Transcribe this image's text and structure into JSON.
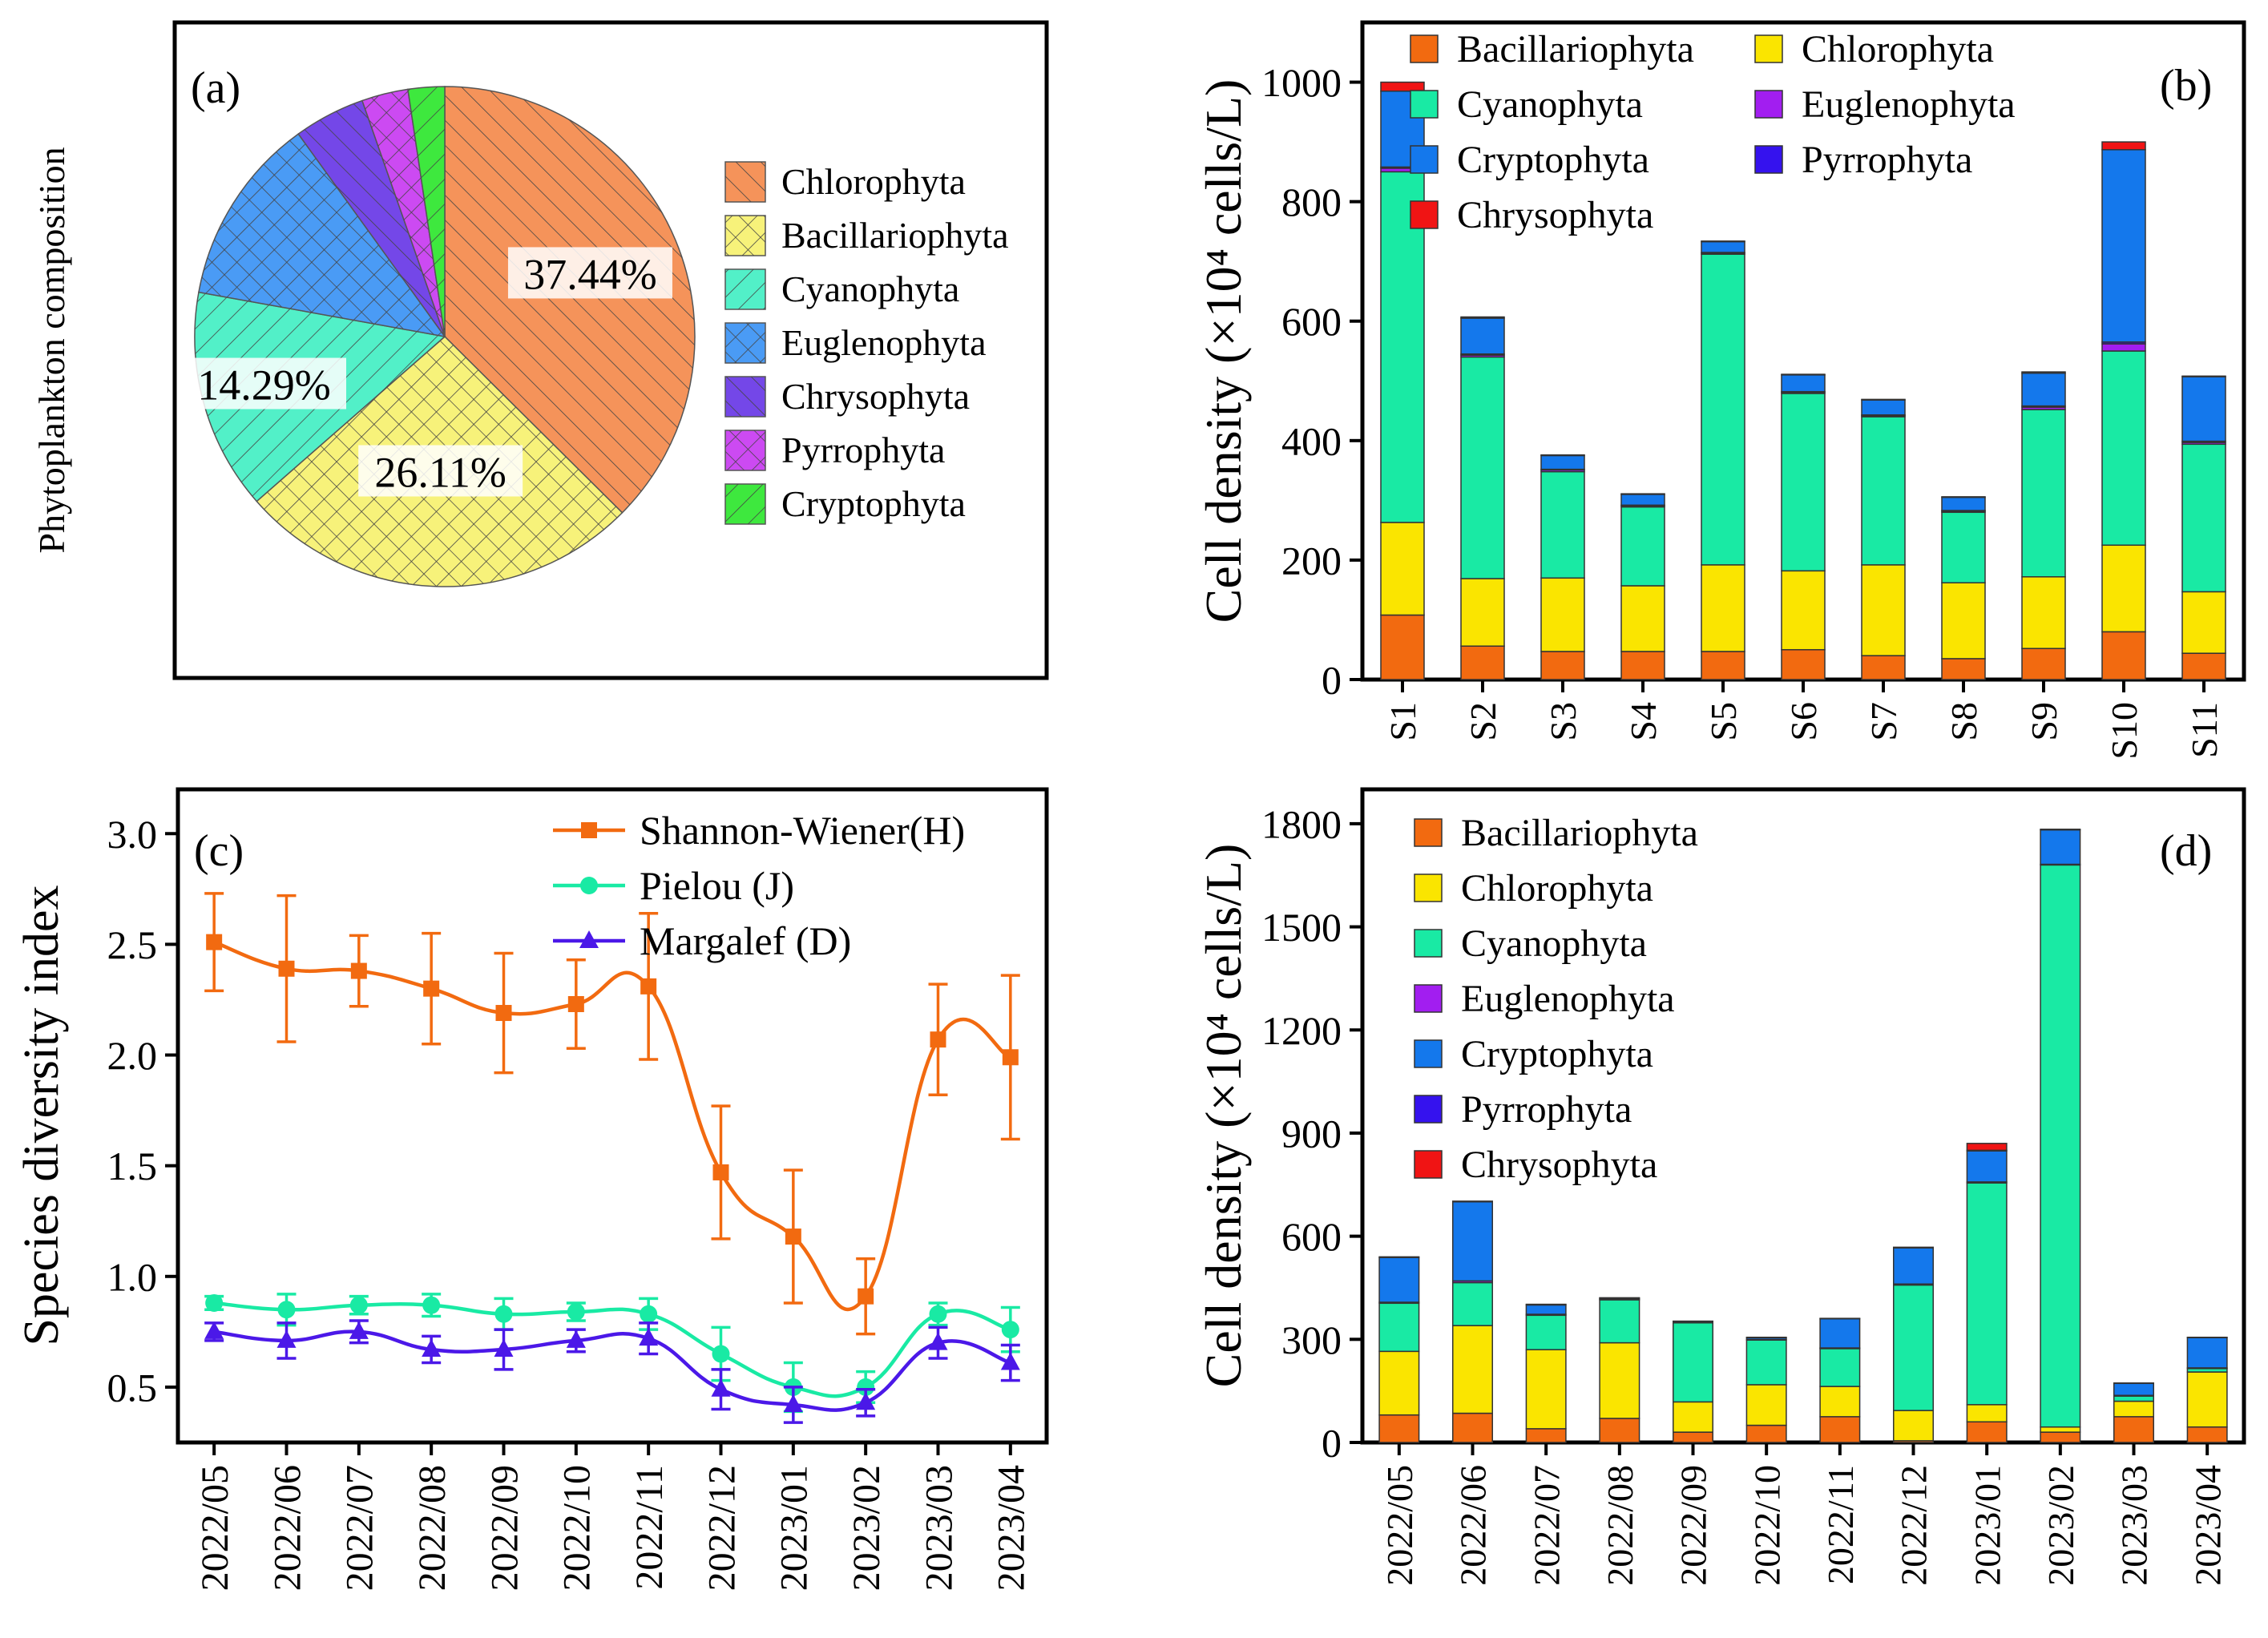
{
  "colors": {
    "Bacillariophyta": "#F26A10",
    "Chlorophyta": "#FAE500",
    "Cyanophyta": "#19EAA4",
    "Cryptophyta": "#1478EC",
    "Euglenophyta": "#A21EF0",
    "Pyrrophyta": "#3512EE",
    "Chrysophyta": "#F01414"
  },
  "chart_data": [
    {
      "panel": "(a)",
      "type": "pie",
      "ylabel": "Phytoplankton  composition",
      "slices": [
        {
          "name": "Chlorophyta",
          "value": 37.44,
          "label": "37.44%",
          "color": "#F5935A",
          "hatch": "diag"
        },
        {
          "name": "Bacillariophyta",
          "value": 26.11,
          "label": "26.11%",
          "color": "#F7F27A",
          "hatch": "cross"
        },
        {
          "name": "Cyanophyta",
          "value": 14.29,
          "label": "14.29%",
          "color": "#52F0C8",
          "hatch": "diag-rev"
        },
        {
          "name": "Euglenophyta",
          "value": 12.2,
          "label": "",
          "color": "#4A9BF5",
          "hatch": "cross"
        },
        {
          "name": "Chrysophyta",
          "value": 4.6,
          "label": "",
          "color": "#7447E8",
          "hatch": "diag"
        },
        {
          "name": "Pyrrophyta",
          "value": 3.0,
          "label": "",
          "color": "#CC4AF2",
          "hatch": "cross"
        },
        {
          "name": "Cryptophyta",
          "value": 2.36,
          "label": "",
          "color": "#3EE83E",
          "hatch": "diag-rev"
        }
      ],
      "legend": [
        "Chlorophyta",
        "Bacillariophyta",
        "Cyanophyta",
        "Euglenophyta",
        "Chrysophyta",
        "Pyrrophyta",
        "Cryptophyta"
      ]
    },
    {
      "panel": "(b)",
      "type": "bar",
      "stacked": true,
      "ylabel": "Cell density (×10⁴ cells/L)",
      "ylim": [
        0,
        1100
      ],
      "yticks": [
        0,
        200,
        400,
        600,
        800,
        1000
      ],
      "categories": [
        "S1",
        "S2",
        "S3",
        "S4",
        "S5",
        "S6",
        "S7",
        "S8",
        "S9",
        "S10",
        "S11"
      ],
      "series": [
        {
          "name": "Bacillariophyta",
          "values": [
            108,
            56,
            47,
            47,
            47,
            50,
            40,
            35,
            52,
            80,
            44
          ]
        },
        {
          "name": "Chlorophyta",
          "values": [
            155,
            113,
            123,
            110,
            145,
            132,
            152,
            127,
            120,
            145,
            103
          ]
        },
        {
          "name": "Cyanophyta",
          "values": [
            587,
            371,
            178,
            132,
            520,
            297,
            248,
            118,
            280,
            325,
            247
          ]
        },
        {
          "name": "Euglenophyta",
          "values": [
            6,
            3,
            3,
            2,
            2,
            2,
            2,
            2,
            4,
            12,
            3
          ]
        },
        {
          "name": "Pyrrophyta",
          "values": [
            2,
            2,
            1,
            1,
            1,
            1,
            1,
            1,
            2,
            3,
            2
          ]
        },
        {
          "name": "Cryptophyta",
          "values": [
            127,
            60,
            23,
            18,
            18,
            28,
            25,
            22,
            55,
            322,
            108
          ]
        },
        {
          "name": "Chrysophyta",
          "values": [
            15,
            2,
            1,
            1,
            1,
            1,
            1,
            1,
            2,
            13,
            1
          ]
        }
      ],
      "legend": [
        "Bacillariophyta",
        "Chlorophyta",
        "Cyanophyta",
        "Euglenophyta",
        "Cryptophyta",
        "Pyrrophyta",
        "Chrysophyta"
      ]
    },
    {
      "panel": "(c)",
      "type": "line",
      "ylabel": "Species diversity index",
      "ylim": [
        0.25,
        3.2
      ],
      "yticks": [
        0.5,
        1.0,
        1.5,
        2.0,
        2.5,
        3.0
      ],
      "ytick_labels": [
        "0.5",
        "1.0",
        "1.5",
        "2.0",
        "2.5",
        "3.0"
      ],
      "categories": [
        "2022/05",
        "2022/06",
        "2022/07",
        "2022/08",
        "2022/09",
        "2022/10",
        "2022/11",
        "2022/12",
        "2023/01",
        "2023/02",
        "2023/03",
        "2023/04"
      ],
      "series": [
        {
          "name": "Shannon-Wiener(H)",
          "color": "#F26A10",
          "marker": "square",
          "values": [
            2.51,
            2.39,
            2.38,
            2.3,
            2.19,
            2.23,
            2.31,
            1.47,
            1.18,
            0.91,
            2.07,
            1.99
          ],
          "errors": [
            0.22,
            0.33,
            0.16,
            0.25,
            0.27,
            0.2,
            0.33,
            0.3,
            0.3,
            0.17,
            0.25,
            0.37
          ]
        },
        {
          "name": "Pielou (J)",
          "color": "#19EAA4",
          "marker": "circle",
          "values": [
            0.88,
            0.85,
            0.87,
            0.87,
            0.83,
            0.84,
            0.83,
            0.65,
            0.5,
            0.5,
            0.83,
            0.76
          ],
          "errors": [
            0.03,
            0.07,
            0.04,
            0.05,
            0.07,
            0.04,
            0.07,
            0.12,
            0.11,
            0.07,
            0.05,
            0.1
          ]
        },
        {
          "name": "Margalef (D)",
          "color": "#4B18E8",
          "marker": "triangle",
          "values": [
            0.75,
            0.71,
            0.75,
            0.67,
            0.67,
            0.71,
            0.72,
            0.49,
            0.42,
            0.43,
            0.7,
            0.61
          ],
          "errors": [
            0.04,
            0.08,
            0.05,
            0.06,
            0.09,
            0.05,
            0.07,
            0.09,
            0.08,
            0.06,
            0.07,
            0.08
          ]
        }
      ]
    },
    {
      "panel": "(d)",
      "type": "bar",
      "stacked": true,
      "ylabel": "Cell density (×10⁴ cells/L)",
      "ylim": [
        0,
        1900
      ],
      "yticks": [
        0,
        300,
        600,
        900,
        1200,
        1500,
        1800
      ],
      "categories": [
        "2022/05",
        "2022/06",
        "2022/07",
        "2022/08",
        "2022/09",
        "2022/10",
        "2022/11",
        "2022/12",
        "2023/01",
        "2023/02",
        "2023/03",
        "2023/04"
      ],
      "series": [
        {
          "name": "Bacillariophyta",
          "values": [
            80,
            85,
            40,
            70,
            30,
            50,
            75,
            5,
            60,
            30,
            75,
            45
          ]
        },
        {
          "name": "Chlorophyta",
          "values": [
            185,
            255,
            230,
            220,
            88,
            118,
            88,
            88,
            50,
            15,
            45,
            160
          ]
        },
        {
          "name": "Cyanophyta",
          "values": [
            140,
            125,
            100,
            125,
            230,
            130,
            110,
            365,
            645,
            1635,
            15,
            10
          ]
        },
        {
          "name": "Euglenophyta",
          "values": [
            3,
            5,
            3,
            2,
            2,
            2,
            2,
            3,
            3,
            2,
            2,
            2
          ]
        },
        {
          "name": "Cryptophyta",
          "values": [
            130,
            230,
            27,
            3,
            2,
            5,
            85,
            105,
            90,
            100,
            35,
            88
          ]
        },
        {
          "name": "Pyrrophyta",
          "values": [
            2,
            2,
            2,
            1,
            1,
            1,
            1,
            2,
            2,
            2,
            1,
            1
          ]
        },
        {
          "name": "Chrysophyta",
          "values": [
            0,
            0,
            0,
            0,
            0,
            0,
            0,
            0,
            20,
            0,
            0,
            0
          ]
        }
      ],
      "legend": [
        "Bacillariophyta",
        "Chlorophyta",
        "Cyanophyta",
        "Euglenophyta",
        "Cryptophyta",
        "Pyrrophyta",
        "Chrysophyta"
      ]
    }
  ],
  "panel_labels": {
    "a": "(a)",
    "b": "(b)",
    "c": "(c)",
    "d": "(d)"
  }
}
